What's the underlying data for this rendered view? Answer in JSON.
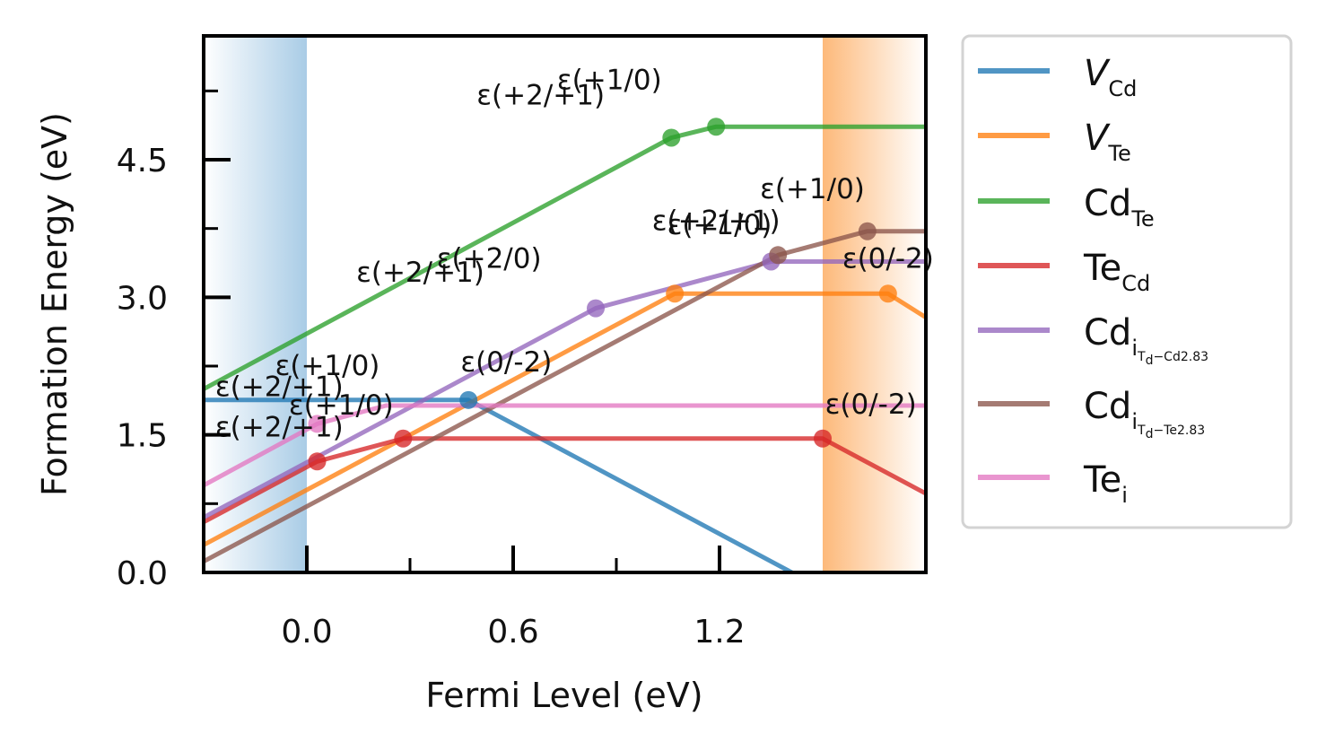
{
  "chart_data": {
    "type": "line",
    "xlabel": "Fermi Level (eV)",
    "ylabel": "Formation Energy (eV)",
    "xlim": [
      -0.3,
      1.8
    ],
    "ylim": [
      0.0,
      5.85
    ],
    "xticks": [
      0.0,
      0.6,
      1.2
    ],
    "xtick_labels": [
      "0.0",
      "0.6",
      "1.2"
    ],
    "yticks": [
      0.0,
      1.5,
      3.0,
      4.5
    ],
    "ytick_labels": [
      "0.0",
      "1.5",
      "3.0",
      "4.5"
    ],
    "grid": false,
    "legend_position": "outside-right",
    "shaded_regions": [
      {
        "name": "valence-band",
        "x": [
          -0.3,
          0.0
        ],
        "color": "#a9cce6"
      },
      {
        "name": "conduction-band",
        "x": [
          1.5,
          1.8
        ],
        "color": "#fdb97a"
      }
    ],
    "series": [
      {
        "name": "V",
        "sub": "Cd",
        "italic": true,
        "color": "#1f77b4",
        "x": [
          -0.3,
          0.47,
          1.5
        ],
        "y": [
          1.88,
          1.88,
          -0.18
        ],
        "points": [
          {
            "x": 0.47,
            "y": 1.88
          }
        ]
      },
      {
        "name": "V",
        "sub": "Te",
        "italic": true,
        "color": "#ff7f0e",
        "x": [
          -0.3,
          1.07,
          1.69,
          1.8
        ],
        "y": [
          0.3,
          3.04,
          3.04,
          2.78
        ],
        "points": [
          {
            "x": 1.07,
            "y": 3.04
          },
          {
            "x": 1.69,
            "y": 3.04
          }
        ]
      },
      {
        "name": "Cd",
        "sub": "Te",
        "italic": false,
        "color": "#2ca02c",
        "x": [
          -0.3,
          1.06,
          1.19,
          1.8
        ],
        "y": [
          2.0,
          4.74,
          4.86,
          4.86
        ],
        "points": [
          {
            "x": 1.06,
            "y": 4.74
          },
          {
            "x": 1.19,
            "y": 4.86
          }
        ]
      },
      {
        "name": "Te",
        "sub": "Cd",
        "italic": false,
        "color": "#d62728",
        "x": [
          -0.3,
          0.03,
          0.28,
          1.5,
          1.8
        ],
        "y": [
          0.55,
          1.21,
          1.46,
          1.46,
          0.86
        ],
        "points": [
          {
            "x": 0.03,
            "y": 1.21
          },
          {
            "x": 0.28,
            "y": 1.46
          },
          {
            "x": 1.5,
            "y": 1.46
          }
        ]
      },
      {
        "name": "Cd",
        "sub": "i",
        "subsub": "T",
        "subsubsub": "d",
        "suffix": "−Cd2.83",
        "italic": false,
        "color": "#9467bd",
        "x": [
          -0.3,
          0.84,
          1.35,
          1.8
        ],
        "y": [
          0.6,
          2.88,
          3.39,
          3.39
        ],
        "points": [
          {
            "x": 0.84,
            "y": 2.88
          },
          {
            "x": 1.35,
            "y": 3.39
          }
        ]
      },
      {
        "name": "Cd",
        "sub": "i",
        "subsub": "T",
        "subsubsub": "d",
        "suffix": "−Te2.83",
        "italic": false,
        "color": "#8c564b",
        "x": [
          -0.3,
          1.37,
          1.63,
          1.8
        ],
        "y": [
          0.12,
          3.46,
          3.72,
          3.72
        ],
        "points": [
          {
            "x": 1.37,
            "y": 3.46
          },
          {
            "x": 1.63,
            "y": 3.72
          }
        ]
      },
      {
        "name": "Te",
        "sub": "i",
        "italic": false,
        "color": "#e377c2",
        "x": [
          -0.3,
          0.03,
          0.23,
          1.8
        ],
        "y": [
          0.95,
          1.62,
          1.82,
          1.82
        ],
        "points": [
          {
            "x": 0.03,
            "y": 1.62
          }
        ]
      }
    ],
    "annotations": [
      {
        "text": "ε(+2/+1)",
        "x": 0.68,
        "y": 5.1
      },
      {
        "text": "ε(+1/0)",
        "x": 0.88,
        "y": 5.27
      },
      {
        "text": "ε(+1/0)",
        "x": 1.47,
        "y": 4.08
      },
      {
        "text": "ε(+2/+1)",
        "x": 1.19,
        "y": 3.73
      },
      {
        "text": "ε(+1/0)",
        "x": 1.2,
        "y": 3.69
      },
      {
        "text": "ε(+2/+1)",
        "x": 0.33,
        "y": 3.17
      },
      {
        "text": "ε(+2/0)",
        "x": 0.53,
        "y": 3.32
      },
      {
        "text": "ε(0/-2)",
        "x": 1.69,
        "y": 3.32
      },
      {
        "text": "ε(+1/0)",
        "x": 0.06,
        "y": 2.15
      },
      {
        "text": "ε(0/-2)",
        "x": 0.58,
        "y": 2.19
      },
      {
        "text": "ε(+2/+1)",
        "x": -0.08,
        "y": 1.92
      },
      {
        "text": "ε(+1/0)",
        "x": 0.1,
        "y": 1.72
      },
      {
        "text": "ε(0/-2)",
        "x": 1.64,
        "y": 1.73
      },
      {
        "text": "ε(+2/+1)",
        "x": -0.08,
        "y": 1.48
      }
    ]
  }
}
